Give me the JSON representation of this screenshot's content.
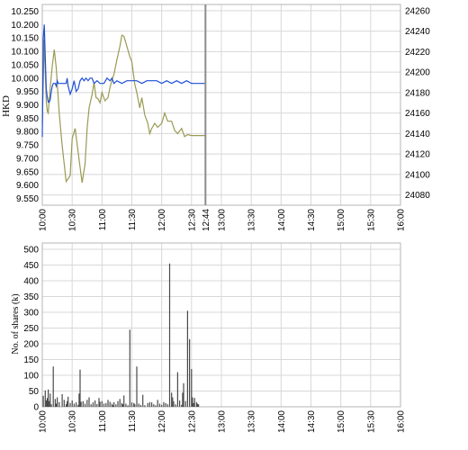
{
  "chart_data": [
    {
      "type": "line",
      "ylabel": "HKD",
      "x_ticks": [
        "10:00",
        "10:30",
        "11:00",
        "11:30",
        "12:00",
        "12:30",
        "12:44",
        "13:00",
        "13:30",
        "14:00",
        "14:30",
        "15:00",
        "15:30",
        "16:00"
      ],
      "x_range_minutes": [
        0,
        360
      ],
      "y_left_ticks": [
        "10.250",
        "10.200",
        "10.150",
        "10.100",
        "10.050",
        "10.000",
        "9.950",
        "9.900",
        "9.850",
        "9.800",
        "9.750",
        "9.700",
        "9.650",
        "9.600",
        "9.550"
      ],
      "y_left_range": [
        9.525,
        10.275
      ],
      "y_right_ticks": [
        "24260",
        "24240",
        "24220",
        "24200",
        "24180",
        "24160",
        "24140",
        "24120",
        "24100",
        "24080"
      ],
      "y_right_range": [
        24070,
        24266
      ],
      "marker_label": "12:44",
      "marker_minute": 164,
      "grid": true,
      "colors": {
        "price": "#1f4fd8",
        "index": "#9a9a55",
        "marker": "#8c8c8c",
        "grid": "#d8d8d8",
        "frame": "#b4b4b4"
      },
      "series": [
        {
          "axis": "left",
          "x": [
            0,
            1,
            2,
            3,
            4,
            5,
            6,
            7,
            8,
            9,
            10,
            11,
            12,
            13,
            14,
            15,
            16,
            18,
            20,
            22,
            24,
            25,
            26,
            28,
            30,
            32,
            34,
            36,
            38,
            40,
            42,
            44,
            46,
            48,
            50,
            52,
            55,
            58,
            60,
            62,
            65,
            68,
            70,
            72,
            75,
            80,
            85,
            90,
            95,
            100,
            105,
            110,
            115,
            120,
            125,
            130,
            135,
            140,
            145,
            150,
            155,
            160,
            164
          ],
          "values": [
            9.78,
            10.15,
            10.2,
            10.08,
            9.96,
            9.93,
            9.91,
            9.91,
            9.92,
            9.95,
            9.97,
            9.98,
            9.98,
            9.98,
            9.97,
            9.99,
            9.98,
            9.98,
            9.98,
            9.98,
            9.98,
            10.0,
            9.97,
            9.94,
            9.96,
            9.99,
            9.95,
            9.96,
            9.99,
            10.0,
            9.99,
            10.0,
            9.99,
            10.0,
            10.0,
            9.98,
            9.99,
            9.98,
            9.98,
            9.98,
            10.0,
            9.99,
            10.0,
            9.98,
            9.99,
            9.98,
            9.99,
            9.99,
            9.99,
            9.98,
            9.99,
            9.99,
            9.99,
            9.98,
            9.99,
            9.98,
            9.99,
            9.98,
            9.99,
            9.98,
            9.98,
            9.98,
            9.98
          ]
        },
        {
          "axis": "right",
          "x": [
            0,
            2,
            3,
            4,
            5,
            6,
            8,
            10,
            12,
            14,
            17,
            20,
            24,
            28,
            30,
            33,
            36,
            40,
            43,
            45,
            47,
            50,
            52,
            54,
            56,
            58,
            60,
            63,
            66,
            68,
            70,
            72,
            75,
            78,
            80,
            82,
            85,
            88,
            90,
            93,
            95,
            98,
            100,
            103,
            106,
            108,
            110,
            113,
            116,
            120,
            123,
            126,
            130,
            133,
            136,
            140,
            143,
            146,
            150,
            153,
            156,
            160,
            164
          ],
          "values": [
            24150,
            24232,
            24200,
            24172,
            24162,
            24160,
            24185,
            24206,
            24222,
            24204,
            24160,
            24128,
            24093,
            24099,
            24135,
            24145,
            24122,
            24092,
            24110,
            24145,
            24165,
            24178,
            24190,
            24175,
            24174,
            24170,
            24180,
            24172,
            24175,
            24185,
            24192,
            24198,
            24212,
            24225,
            24236,
            24235,
            24225,
            24215,
            24210,
            24188,
            24180,
            24165,
            24175,
            24158,
            24150,
            24140,
            24145,
            24150,
            24146,
            24150,
            24160,
            24152,
            24152,
            24143,
            24140,
            24145,
            24137,
            24139,
            24138,
            24138,
            24138,
            24138,
            24138
          ]
        }
      ]
    },
    {
      "type": "bar",
      "ylabel": "No. of shares (k)",
      "x_ticks": [
        "10:00",
        "10:30",
        "11:00",
        "11:30",
        "12:00",
        "12:30",
        "13:00",
        "13:30",
        "14:00",
        "14:30",
        "15:00",
        "15:30",
        "16:00"
      ],
      "x_range_minutes": [
        0,
        360
      ],
      "y_ticks": [
        "500",
        "450",
        "400",
        "350",
        "300",
        "250",
        "200",
        "150",
        "100",
        "50",
        "0"
      ],
      "y_range": [
        0,
        520
      ],
      "grid": true,
      "bar_color": "#4a4a4a",
      "x": [
        1,
        3,
        4,
        5,
        6,
        7,
        8,
        9,
        11,
        13,
        14,
        15,
        17,
        20,
        22,
        24,
        25,
        26,
        28,
        30,
        32,
        34,
        36,
        37,
        38,
        39,
        41,
        43,
        45,
        47,
        49,
        51,
        53,
        55,
        57,
        58,
        60,
        62,
        64,
        66,
        68,
        70,
        71,
        72,
        74,
        76,
        78,
        80,
        81,
        82,
        84,
        86,
        88,
        90,
        92,
        93,
        95,
        97,
        99,
        101,
        103,
        106,
        108,
        110,
        112,
        114,
        116,
        118,
        120,
        122,
        124,
        126,
        128,
        130,
        131,
        132,
        134,
        136,
        138,
        140,
        141,
        142,
        144,
        146,
        148,
        150,
        151,
        152,
        153,
        155,
        156,
        157
      ],
      "values": [
        35,
        52,
        20,
        28,
        55,
        18,
        42,
        8,
        128,
        25,
        10,
        30,
        15,
        40,
        22,
        8,
        18,
        32,
        12,
        20,
        10,
        14,
        6,
        42,
        118,
        16,
        18,
        10,
        22,
        30,
        8,
        14,
        20,
        9,
        28,
        16,
        18,
        10,
        12,
        22,
        16,
        10,
        5,
        15,
        8,
        18,
        25,
        12,
        8,
        36,
        10,
        5,
        245,
        14,
        12,
        8,
        128,
        10,
        6,
        38,
        5,
        12,
        15,
        14,
        8,
        5,
        22,
        10,
        6,
        15,
        12,
        8,
        455,
        45,
        30,
        18,
        8,
        110,
        20,
        6,
        45,
        75,
        18,
        305,
        215,
        120,
        30,
        12,
        28,
        15,
        10,
        8
      ]
    }
  ]
}
